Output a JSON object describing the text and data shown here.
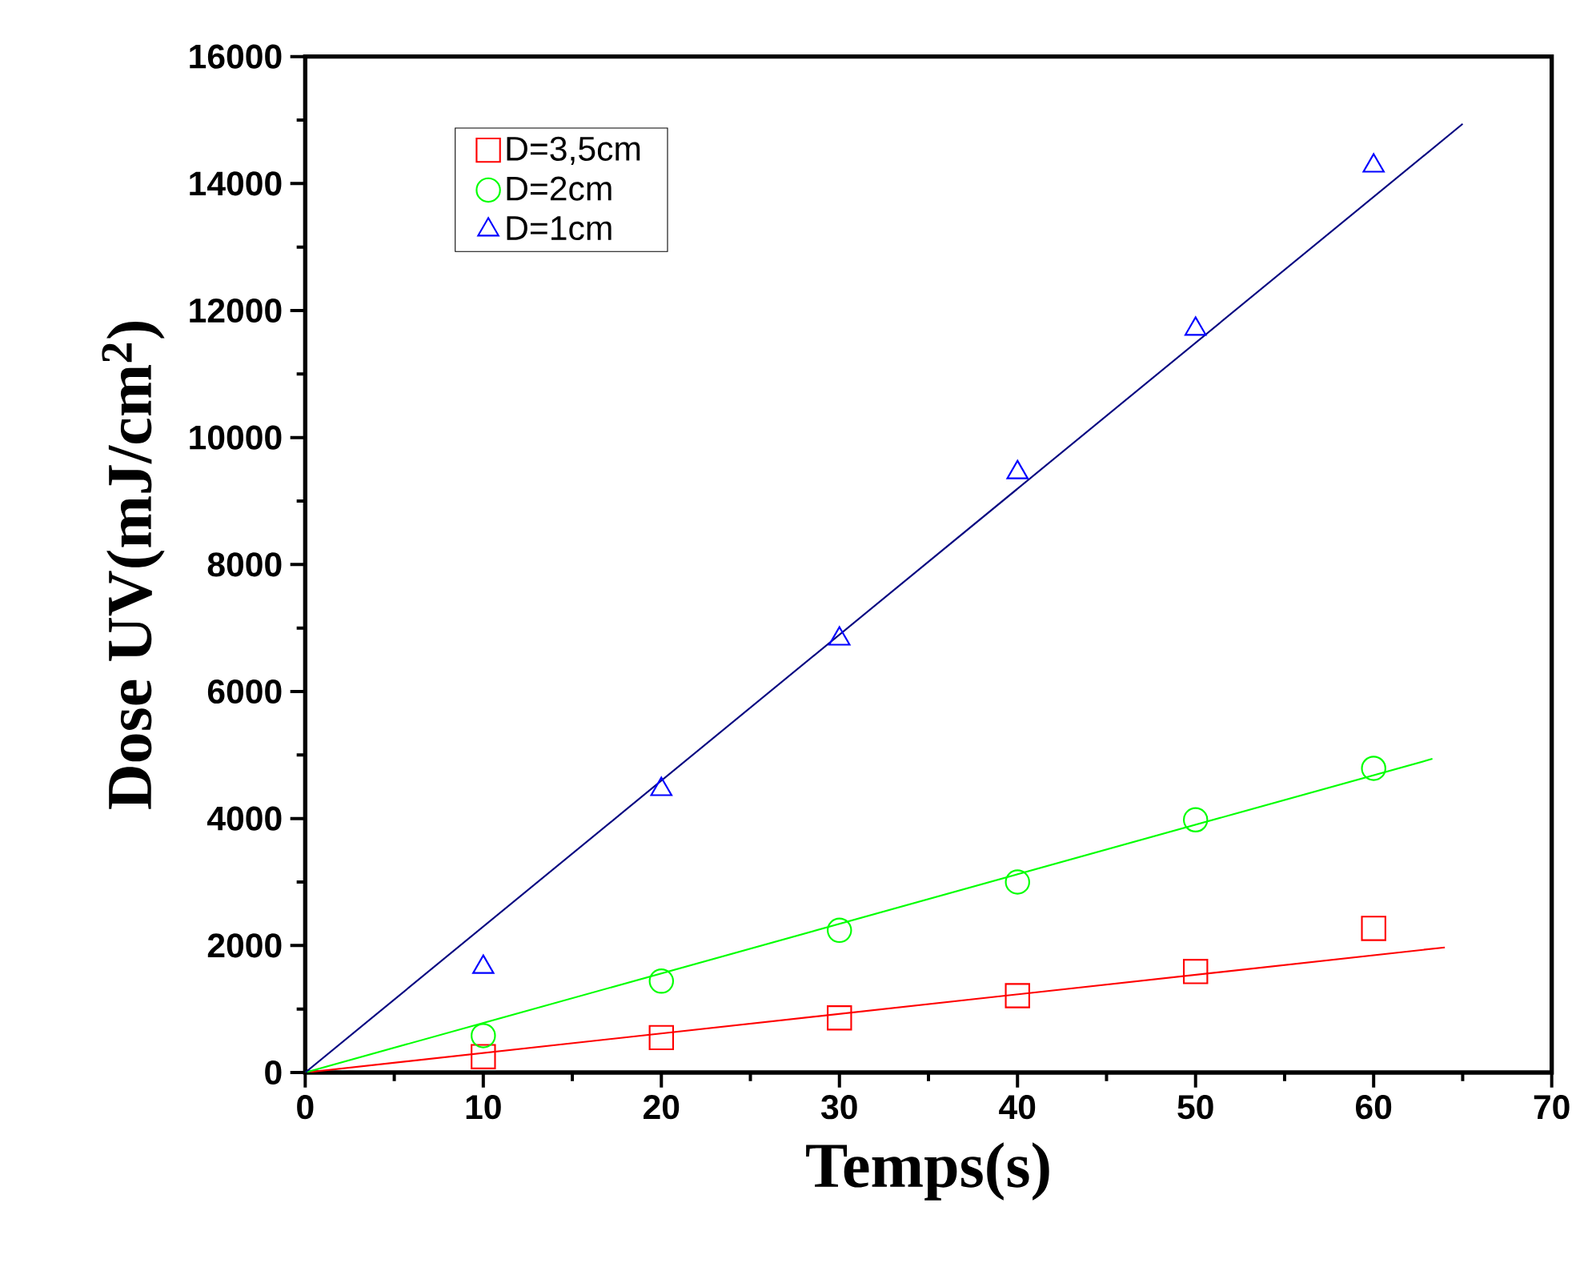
{
  "chart_data": {
    "type": "scatter",
    "xlabel": "Temps(s)",
    "ylabel": "Dose UV(mJ/cm$^{2}$)",
    "xlim": [
      0,
      70
    ],
    "xticks": [
      0,
      10,
      20,
      30,
      40,
      50,
      60,
      70
    ],
    "ylim": [
      0,
      16000
    ],
    "yticks": [
      0,
      2000,
      4000,
      6000,
      8000,
      10000,
      12000,
      14000,
      16000
    ],
    "grid": false,
    "legend": "top left",
    "series": [
      {
        "type": "line",
        "color": "#ff0000",
        "marker": "none",
        "line_style": "solid",
        "x": [
          0,
          64
        ],
        "values": [
          0,
          1970
        ]
      },
      {
        "type": "line",
        "color": "#00ff00",
        "marker": "none",
        "line_style": "solid",
        "x": [
          0,
          63.3
        ],
        "values": [
          0,
          4940
        ]
      },
      {
        "type": "line",
        "color": "#000080",
        "marker": "none",
        "line_style": "solid",
        "x": [
          0,
          65
        ],
        "values": [
          0,
          14940
        ]
      },
      {
        "name": "D=3,5cm",
        "color": "#ff0000",
        "marker": "square",
        "x": [
          10,
          20,
          30,
          40,
          50,
          60
        ],
        "values": [
          250,
          550,
          860,
          1210,
          1590,
          2270
        ]
      },
      {
        "name": "D=2cm",
        "color": "#00ff00",
        "marker": "circle",
        "x": [
          10,
          20,
          30,
          40,
          50,
          60
        ],
        "values": [
          580,
          1440,
          2240,
          3000,
          3980,
          4790
        ]
      },
      {
        "name": "D=1cm",
        "color": "#0000ff",
        "marker": "triangle",
        "x": [
          10,
          20,
          30,
          40,
          50,
          60
        ],
        "values": [
          1660,
          4460,
          6830,
          9450,
          11710,
          14280
        ]
      }
    ]
  }
}
